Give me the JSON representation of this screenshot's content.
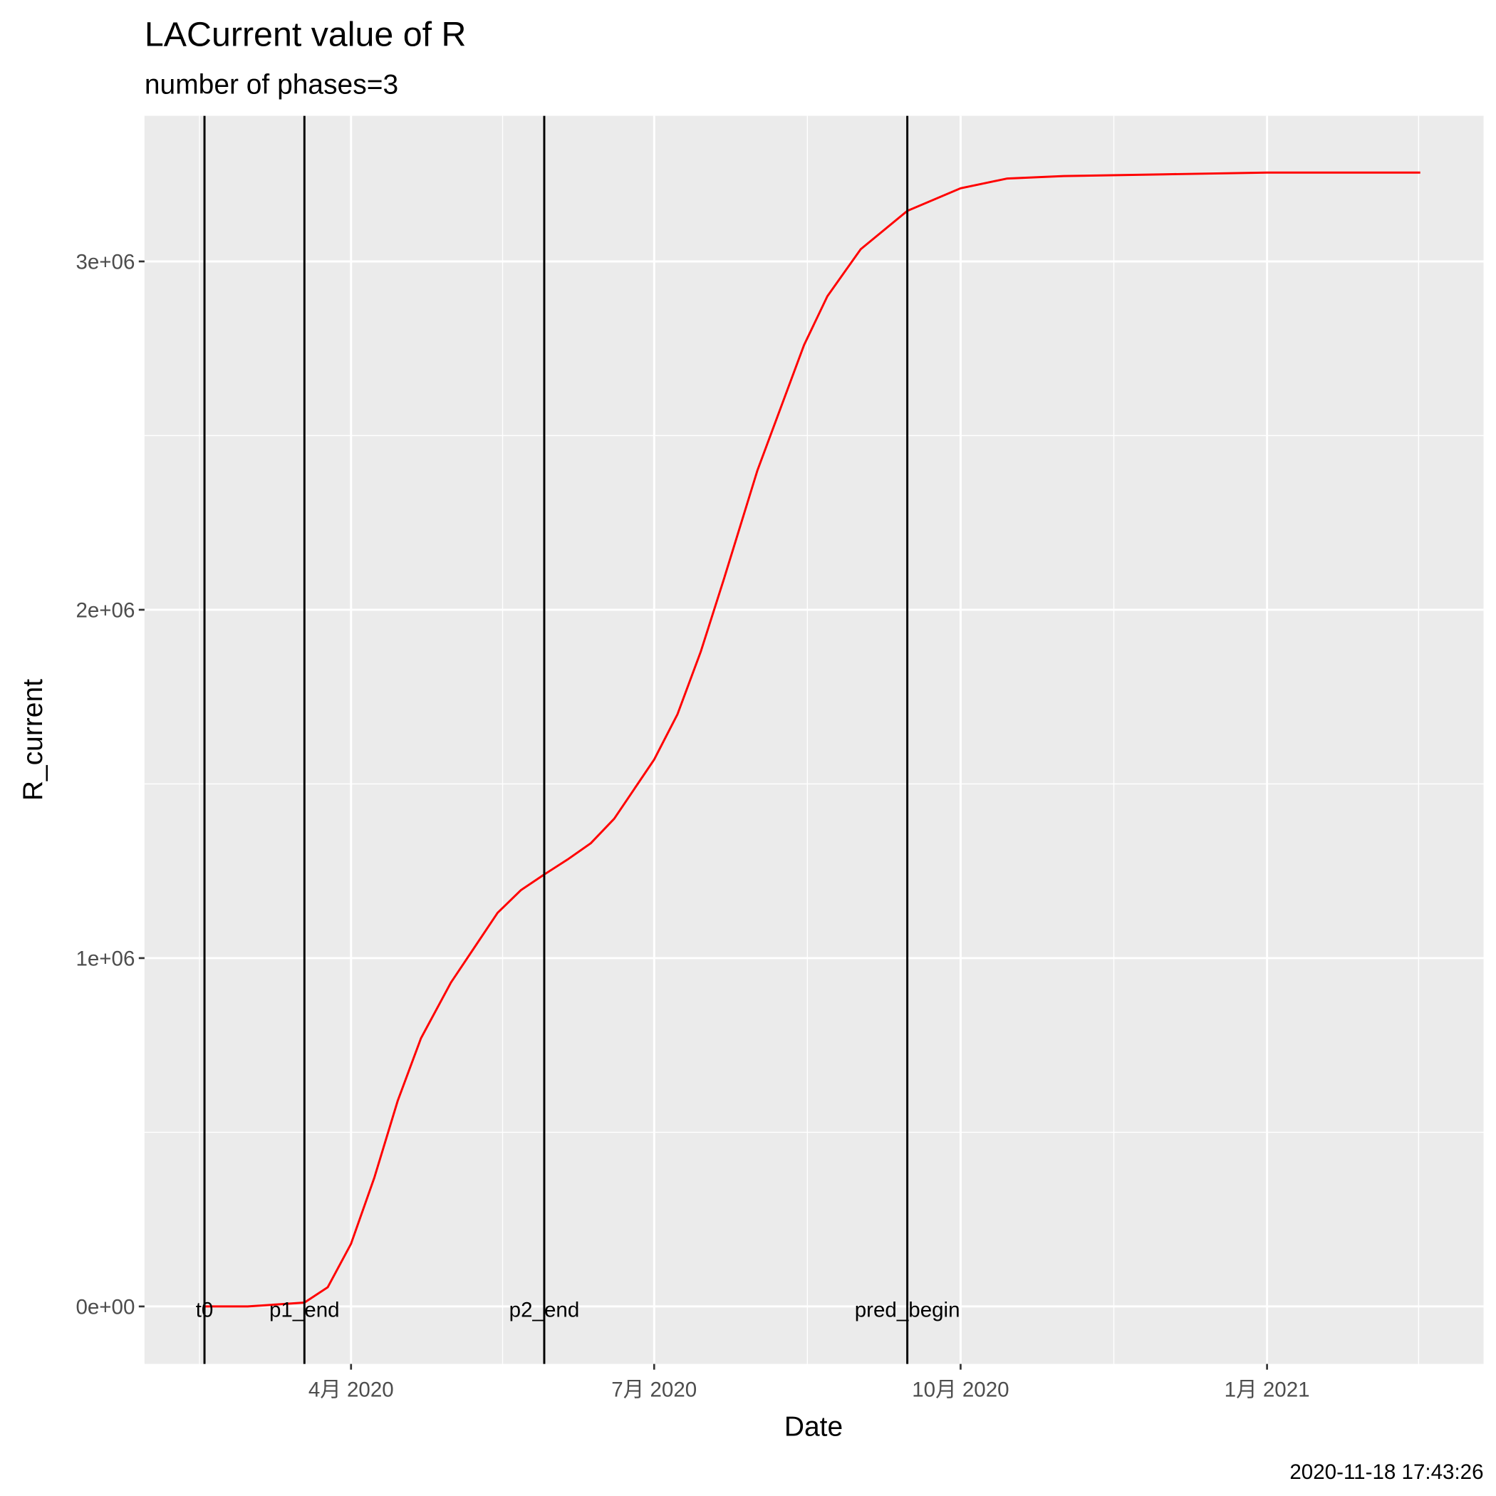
{
  "chart_data": {
    "type": "line",
    "title": "LACurrent value of R",
    "subtitle": "number of phases=3",
    "x_label": "Date",
    "y_label": "R_current",
    "caption": "2020-11-18 17:43:26",
    "xlim": [
      "2020-01-30",
      "2021-03-07"
    ],
    "xticks": [
      {
        "value": "2020-04-01",
        "label": "4月 2020"
      },
      {
        "value": "2020-07-01",
        "label": "7月 2020"
      },
      {
        "value": "2020-10-01",
        "label": "10月 2020"
      },
      {
        "value": "2021-01-01",
        "label": "1月 2021"
      }
    ],
    "ylim": [
      -165000,
      3418000
    ],
    "yticks": [
      {
        "value": 0,
        "label": "0e+00"
      },
      {
        "value": 1000000,
        "label": "1e+06"
      },
      {
        "value": 2000000,
        "label": "2e+06"
      },
      {
        "value": 3000000,
        "label": "3e+06"
      }
    ],
    "grid": true,
    "series": [
      {
        "name": "R_current",
        "color": "#ff0000",
        "x": [
          "2020-02-17",
          "2020-03-01",
          "2020-03-18",
          "2020-03-25",
          "2020-04-01",
          "2020-04-08",
          "2020-04-15",
          "2020-04-22",
          "2020-05-01",
          "2020-05-08",
          "2020-05-15",
          "2020-05-22",
          "2020-05-29",
          "2020-06-05",
          "2020-06-12",
          "2020-06-19",
          "2020-07-01",
          "2020-07-08",
          "2020-07-15",
          "2020-07-22",
          "2020-08-01",
          "2020-08-08",
          "2020-08-15",
          "2020-08-22",
          "2020-09-01",
          "2020-09-15",
          "2020-10-01",
          "2020-10-15",
          "2020-11-01",
          "2020-12-01",
          "2021-01-01",
          "2021-02-16"
        ],
        "values": [
          0,
          0,
          11000,
          55000,
          180000,
          370000,
          590000,
          770000,
          930000,
          1030000,
          1130000,
          1195000,
          1240000,
          1283000,
          1330000,
          1400000,
          1570000,
          1700000,
          1880000,
          2090000,
          2400000,
          2580000,
          2760000,
          2900000,
          3035000,
          3145000,
          3210000,
          3238000,
          3245000,
          3250000,
          3255000,
          3255000
        ]
      }
    ],
    "vlines": [
      {
        "label": "t0",
        "x": "2020-02-17"
      },
      {
        "label": "p1_end",
        "x": "2020-03-18"
      },
      {
        "label": "p2_end",
        "x": "2020-05-29"
      },
      {
        "label": "pred_begin",
        "x": "2020-09-15"
      }
    ]
  }
}
